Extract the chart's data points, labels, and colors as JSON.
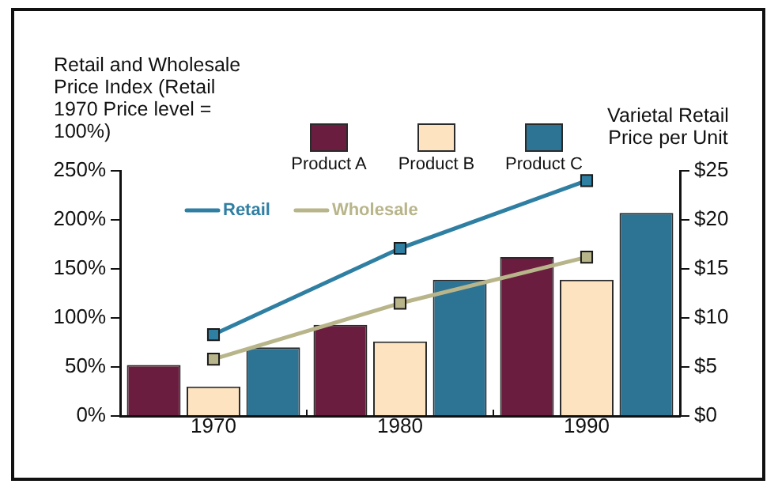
{
  "chart_data": {
    "type": "bar",
    "ylabel": "Retail and Wholesale Price Index (Retail 1970 Price level = 100%)",
    "y2label": "Varietal Retail Price per Unit",
    "categories": [
      "1970",
      "1980",
      "1990"
    ],
    "series": [
      {
        "name": "Product A",
        "axis": "y2",
        "color": "#6b1d3f",
        "values": [
          5.2,
          9.3,
          16.2
        ]
      },
      {
        "name": "Product B",
        "axis": "y2",
        "color": "#fde3c0",
        "values": [
          3.0,
          7.6,
          13.9
        ]
      },
      {
        "name": "Product C",
        "axis": "y2",
        "color": "#2d7394",
        "values": [
          7.0,
          13.9,
          20.7
        ]
      },
      {
        "name": "Retail",
        "type": "line",
        "color": "#2f7fa3",
        "values": [
          83,
          171,
          240
        ]
      },
      {
        "name": "Wholesale",
        "type": "line",
        "color": "#b8b58a",
        "values": [
          58,
          115,
          162
        ]
      }
    ],
    "ylim": [
      0,
      250
    ],
    "yticks": [
      {
        "value": 0,
        "label": "0%"
      },
      {
        "value": 50,
        "label": "50%"
      },
      {
        "value": 100,
        "label": "100%"
      },
      {
        "value": 150,
        "label": "150%"
      },
      {
        "value": 200,
        "label": "200%"
      },
      {
        "value": 250,
        "label": "250%"
      }
    ],
    "y2lim": [
      0,
      25
    ],
    "y2ticks": [
      {
        "value": 0,
        "label": "$0"
      },
      {
        "value": 5,
        "label": "$5"
      },
      {
        "value": 10,
        "label": "$10"
      },
      {
        "value": 15,
        "label": "$15"
      },
      {
        "value": 20,
        "label": "$20"
      },
      {
        "value": 25,
        "label": "$25"
      }
    ],
    "grid": false,
    "legend": "top",
    "marker": "square"
  }
}
